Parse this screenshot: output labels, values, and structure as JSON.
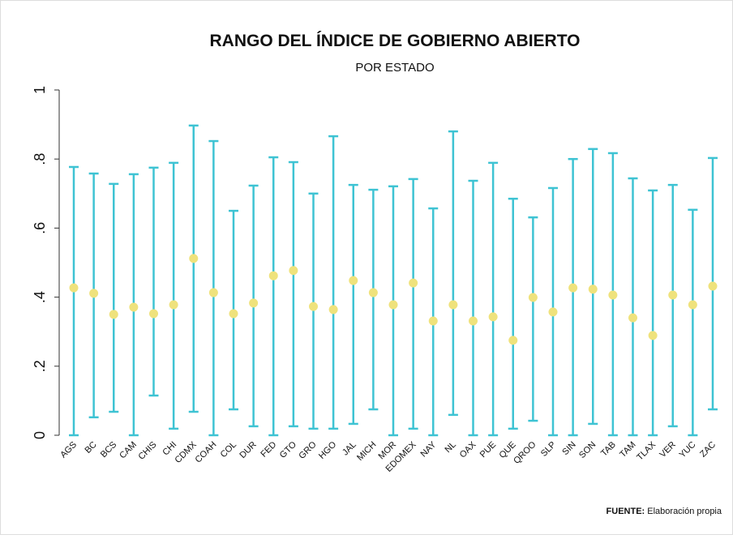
{
  "chart_data": {
    "type": "range",
    "title": "RANGO DEL ÍNDICE DE GOBIERNO ABIERTO",
    "subtitle": "POR ESTADO",
    "source_label": "FUENTE:",
    "source": "Elaboración propia",
    "categories": [
      "AGS",
      "BC",
      "BCS",
      "CAM",
      "CHIS",
      "CHI",
      "CDMX",
      "COAH",
      "COL",
      "DUR",
      "FED",
      "GTO",
      "GRO",
      "HGO",
      "JAL",
      "MICH",
      "MOR",
      "EDOMEX",
      "NAY",
      "NL",
      "OAX",
      "PUE",
      "QUE",
      "QROO",
      "SLP",
      "SIN",
      "SON",
      "TAB",
      "TAM",
      "TLAX",
      "VER",
      "YUC",
      "ZAC"
    ],
    "low": [
      0,
      0.052,
      0.068,
      0,
      0.115,
      0.019,
      0.068,
      0,
      0.075,
      0.026,
      0,
      0.026,
      0.019,
      0.019,
      0.033,
      0.075,
      0,
      0.019,
      0,
      0.059,
      0,
      0,
      0.019,
      0.042,
      0,
      0,
      0.033,
      0,
      0,
      0,
      0.026,
      0,
      0.075
    ],
    "high": [
      0.777,
      0.758,
      0.728,
      0.756,
      0.775,
      0.789,
      0.897,
      0.852,
      0.65,
      0.723,
      0.805,
      0.791,
      0.7,
      0.866,
      0.725,
      0.711,
      0.721,
      0.742,
      0.657,
      0.88,
      0.737,
      0.789,
      0.685,
      0.631,
      0.716,
      0.8,
      0.829,
      0.817,
      0.744,
      0.709,
      0.725,
      0.653,
      0.803
    ],
    "values": [
      0.427,
      0.411,
      0.35,
      0.371,
      0.352,
      0.378,
      0.512,
      0.413,
      0.352,
      0.383,
      0.462,
      0.477,
      0.373,
      0.364,
      0.448,
      0.413,
      0.378,
      0.441,
      0.331,
      0.378,
      0.331,
      0.343,
      0.275,
      0.399,
      0.357,
      0.427,
      0.423,
      0.406,
      0.34,
      0.289,
      0.406,
      0.378,
      0.432
    ],
    "range_color": "#3ec3d3",
    "point_color": "#efe27c",
    "ylim": [
      0,
      1
    ],
    "yticks": [
      0,
      {
        "value": 0.2,
        "label": ".2"
      },
      {
        "value": 0.4,
        "label": ".4"
      },
      {
        "value": 0.6,
        "label": ".6"
      },
      {
        "value": 0.8,
        "label": ".8"
      },
      1
    ]
  }
}
